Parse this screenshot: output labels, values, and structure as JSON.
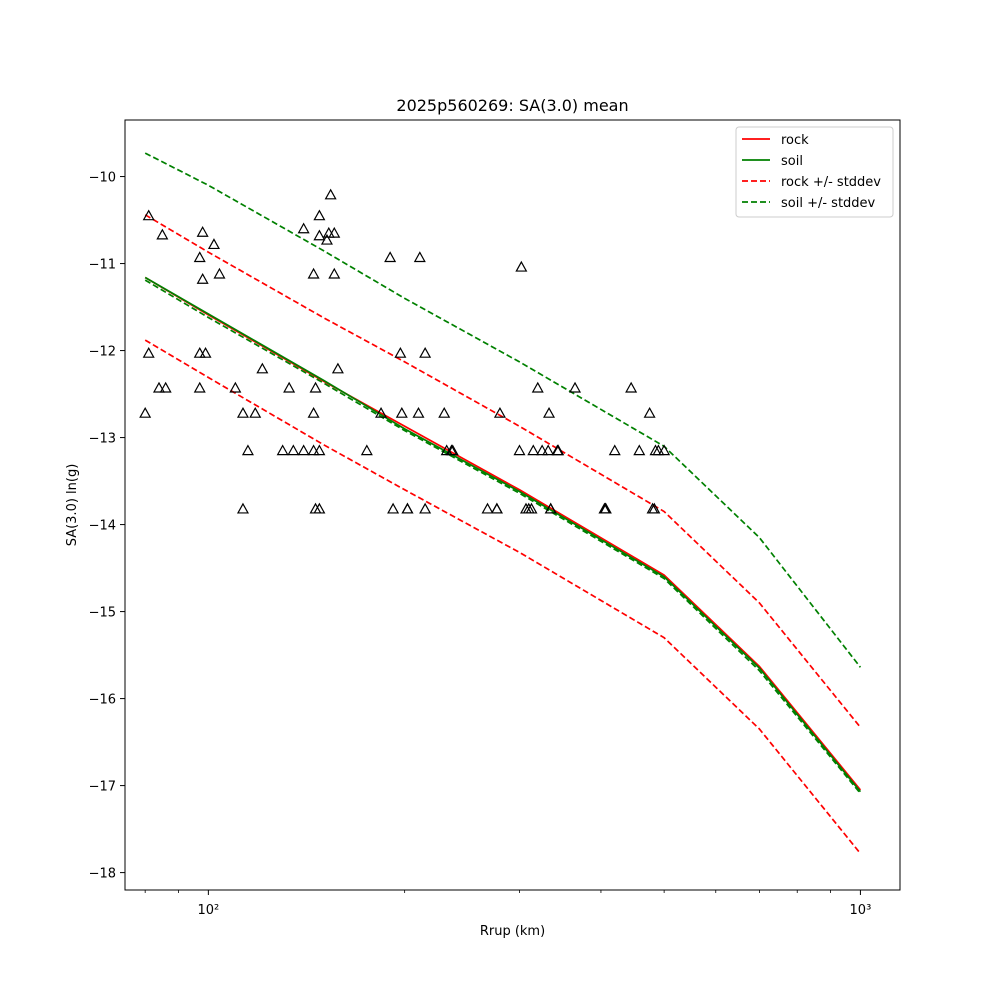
{
  "chart_data": {
    "type": "scatter",
    "title": "2025p560269: SA(3.0) mean",
    "xlabel": "Rrup (km)",
    "ylabel": "SA(3.0) ln(g)",
    "x_scale": "log",
    "xlim": [
      74.5,
      1150
    ],
    "ylim": [
      -18.2,
      -9.35
    ],
    "x_ticks": [
      {
        "value": 100,
        "label": "10²"
      },
      {
        "value": 1000,
        "label": "10³"
      }
    ],
    "y_ticks": [
      -10,
      -11,
      -12,
      -13,
      -14,
      -15,
      -16,
      -17,
      -18
    ],
    "y_tick_labels": [
      "−10",
      "−11",
      "−12",
      "−13",
      "−14",
      "−15",
      "−16",
      "−17",
      "−18"
    ],
    "grid": false,
    "legend_position": "top-right",
    "series": [
      {
        "name": "rock",
        "style": "solid",
        "color": "#ff0000",
        "x": [
          80,
          100,
          150,
          200,
          300,
          500,
          700,
          1000
        ],
        "y": [
          -11.16,
          -11.59,
          -12.35,
          -12.87,
          -13.6,
          -14.58,
          -15.63,
          -17.05
        ]
      },
      {
        "name": "soil",
        "style": "solid",
        "color": "#008000",
        "x": [
          80,
          100,
          150,
          200,
          300,
          500,
          700,
          1000
        ],
        "y": [
          -11.16,
          -11.58,
          -12.34,
          -12.9,
          -13.62,
          -14.6,
          -15.65,
          -17.07
        ]
      },
      {
        "name": "rock +/- stddev",
        "style": "dashed",
        "color": "#ff0000",
        "lines": [
          {
            "x": [
              80,
              100,
              150,
              200,
              300,
              500,
              700,
              1000
            ],
            "y": [
              -10.44,
              -10.87,
              -11.62,
              -12.13,
              -12.87,
              -13.85,
              -14.9,
              -16.33
            ]
          },
          {
            "x": [
              80,
              100,
              150,
              200,
              300,
              500,
              700,
              1000
            ],
            "y": [
              -11.88,
              -12.31,
              -13.08,
              -13.6,
              -14.32,
              -15.3,
              -16.35,
              -17.78
            ]
          }
        ]
      },
      {
        "name": "soil +/- stddev",
        "style": "dashed",
        "color": "#008000",
        "lines": [
          {
            "x": [
              80,
              100,
              150,
              200,
              300,
              500,
              700,
              1000
            ],
            "y": [
              -9.73,
              -10.1,
              -10.85,
              -11.4,
              -12.13,
              -13.1,
              -14.15,
              -15.64
            ]
          },
          {
            "x": [
              80,
              100,
              150,
              200,
              300,
              500,
              700,
              1000
            ],
            "y": [
              -11.19,
              -11.62,
              -12.37,
              -12.92,
              -13.64,
              -14.62,
              -15.68,
              -17.09
            ]
          }
        ]
      }
    ],
    "observations": {
      "marker": "triangle",
      "color": "#000000",
      "points": [
        [
          80,
          -12.72
        ],
        [
          81,
          -10.45
        ],
        [
          81,
          -12.03
        ],
        [
          84,
          -12.43
        ],
        [
          85,
          -10.67
        ],
        [
          86,
          -12.43
        ],
        [
          97,
          -12.03
        ],
        [
          97,
          -10.93
        ],
        [
          97,
          -12.43
        ],
        [
          98,
          -10.64
        ],
        [
          98,
          -11.18
        ],
        [
          99,
          -12.03
        ],
        [
          102,
          -10.78
        ],
        [
          104,
          -11.12
        ],
        [
          110,
          -12.43
        ],
        [
          113,
          -12.72
        ],
        [
          113,
          -13.82
        ],
        [
          115,
          -13.15
        ],
        [
          118,
          -12.72
        ],
        [
          121,
          -12.21
        ],
        [
          130,
          -13.15
        ],
        [
          133,
          -12.43
        ],
        [
          135,
          -13.15
        ],
        [
          140,
          -10.6
        ],
        [
          140,
          -13.15
        ],
        [
          145,
          -11.12
        ],
        [
          145,
          -12.72
        ],
        [
          145,
          -13.15
        ],
        [
          146,
          -12.43
        ],
        [
          146,
          -13.82
        ],
        [
          148,
          -10.45
        ],
        [
          148,
          -10.68
        ],
        [
          148,
          -13.82
        ],
        [
          148,
          -13.15
        ],
        [
          152,
          -10.73
        ],
        [
          153,
          -10.65
        ],
        [
          154,
          -10.21
        ],
        [
          156,
          -10.65
        ],
        [
          156,
          -11.12
        ],
        [
          158,
          -12.21
        ],
        [
          175,
          -13.15
        ],
        [
          184,
          -12.72
        ],
        [
          190,
          -10.93
        ],
        [
          192,
          -13.82
        ],
        [
          197,
          -12.03
        ],
        [
          198,
          -12.72
        ],
        [
          202,
          -13.82
        ],
        [
          202,
          -13.82
        ],
        [
          210,
          -12.72
        ],
        [
          211,
          -10.93
        ],
        [
          215,
          -13.82
        ],
        [
          215,
          -12.03
        ],
        [
          230,
          -12.72
        ],
        [
          232,
          -13.15
        ],
        [
          236,
          -13.15
        ],
        [
          237,
          -13.15
        ],
        [
          268,
          -13.82
        ],
        [
          277,
          -13.82
        ],
        [
          277,
          -13.82
        ],
        [
          280,
          -12.72
        ],
        [
          300,
          -13.15
        ],
        [
          302,
          -11.04
        ],
        [
          307,
          -13.82
        ],
        [
          310,
          -13.82
        ],
        [
          313,
          -13.82
        ],
        [
          315,
          -13.15
        ],
        [
          320,
          -12.43
        ],
        [
          325,
          -13.15
        ],
        [
          332,
          -13.15
        ],
        [
          333,
          -12.72
        ],
        [
          335,
          -13.82
        ],
        [
          335,
          -13.82
        ],
        [
          343,
          -13.15
        ],
        [
          344,
          -13.15
        ],
        [
          365,
          -12.43
        ],
        [
          405,
          -13.82
        ],
        [
          406,
          -13.82
        ],
        [
          407,
          -13.82
        ],
        [
          420,
          -13.15
        ],
        [
          445,
          -12.43
        ],
        [
          458,
          -13.15
        ],
        [
          475,
          -12.72
        ],
        [
          480,
          -13.82
        ],
        [
          483,
          -13.82
        ],
        [
          485,
          -13.15
        ],
        [
          490,
          -13.15
        ],
        [
          500,
          -13.15
        ]
      ]
    }
  }
}
